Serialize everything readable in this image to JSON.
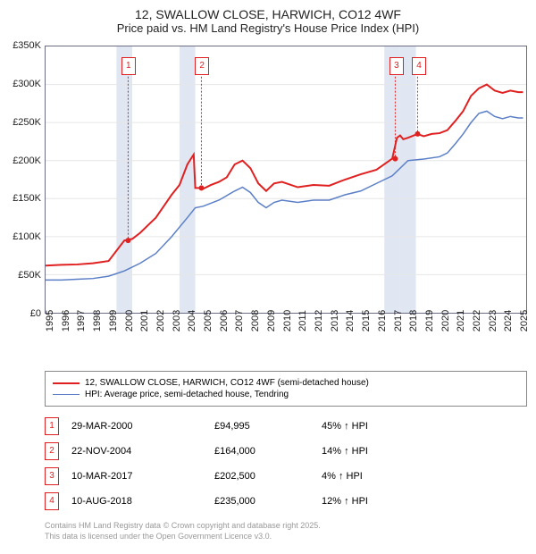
{
  "title": {
    "line1": "12, SWALLOW CLOSE, HARWICH, CO12 4WF",
    "line2": "Price paid vs. HM Land Registry's House Price Index (HPI)"
  },
  "chart": {
    "type": "line",
    "background_color": "#ffffff",
    "border_color": "#6a6c84",
    "grid_color": "#e6e6e6",
    "band_color": "#e0e7f2",
    "x_range": [
      1995,
      2025.5
    ],
    "x_ticks": [
      1995,
      1996,
      1997,
      1998,
      1999,
      2000,
      2001,
      2002,
      2003,
      2004,
      2005,
      2006,
      2007,
      2008,
      2009,
      2010,
      2011,
      2012,
      2013,
      2014,
      2015,
      2016,
      2017,
      2018,
      2019,
      2020,
      2021,
      2022,
      2023,
      2024,
      2025
    ],
    "y_range": [
      0,
      350000
    ],
    "y_ticks": [
      {
        "v": 0,
        "label": "£0"
      },
      {
        "v": 50000,
        "label": "£50K"
      },
      {
        "v": 100000,
        "label": "£100K"
      },
      {
        "v": 150000,
        "label": "£150K"
      },
      {
        "v": 200000,
        "label": "£200K"
      },
      {
        "v": 250000,
        "label": "£250K"
      },
      {
        "v": 300000,
        "label": "£300K"
      },
      {
        "v": 350000,
        "label": "£350K"
      }
    ],
    "x_label_fontsize": 11,
    "y_label_fontsize": 11,
    "series": [
      {
        "name": "12, SWALLOW CLOSE, HARWICH, CO12 4WF (semi-detached house)",
        "color": "#e02020",
        "width": 2,
        "data": [
          [
            1995,
            62000
          ],
          [
            1996,
            63000
          ],
          [
            1997,
            63500
          ],
          [
            1998,
            65000
          ],
          [
            1999,
            68000
          ],
          [
            2000,
            94995
          ],
          [
            2000.5,
            97000
          ],
          [
            2001,
            105000
          ],
          [
            2001.5,
            115000
          ],
          [
            2002,
            125000
          ],
          [
            2002.5,
            140000
          ],
          [
            2003,
            155000
          ],
          [
            2003.5,
            168000
          ],
          [
            2004,
            195000
          ],
          [
            2004.4,
            208000
          ],
          [
            2004.5,
            164000
          ],
          [
            2004.9,
            164000
          ],
          [
            2005,
            163000
          ],
          [
            2005.5,
            168000
          ],
          [
            2006,
            172000
          ],
          [
            2006.5,
            178000
          ],
          [
            2007,
            195000
          ],
          [
            2007.5,
            200000
          ],
          [
            2008,
            190000
          ],
          [
            2008.5,
            170000
          ],
          [
            2009,
            160000
          ],
          [
            2009.5,
            170000
          ],
          [
            2010,
            172000
          ],
          [
            2011,
            165000
          ],
          [
            2012,
            168000
          ],
          [
            2013,
            167000
          ],
          [
            2014,
            175000
          ],
          [
            2015,
            182000
          ],
          [
            2016,
            188000
          ],
          [
            2017,
            202500
          ],
          [
            2017.3,
            230000
          ],
          [
            2017.5,
            233000
          ],
          [
            2017.7,
            228000
          ],
          [
            2018,
            230000
          ],
          [
            2018.6,
            235000
          ],
          [
            2019,
            232000
          ],
          [
            2019.5,
            235000
          ],
          [
            2020,
            236000
          ],
          [
            2020.5,
            240000
          ],
          [
            2021,
            252000
          ],
          [
            2021.5,
            265000
          ],
          [
            2022,
            285000
          ],
          [
            2022.5,
            295000
          ],
          [
            2023,
            300000
          ],
          [
            2023.5,
            292000
          ],
          [
            2024,
            289000
          ],
          [
            2024.5,
            292000
          ],
          [
            2025,
            290000
          ],
          [
            2025.3,
            290000
          ]
        ]
      },
      {
        "name": "HPI: Average price, semi-detached house, Tendring",
        "color": "#5b7fc7",
        "width": 1.5,
        "data": [
          [
            1995,
            43000
          ],
          [
            1996,
            43000
          ],
          [
            1997,
            44000
          ],
          [
            1998,
            45000
          ],
          [
            1999,
            48000
          ],
          [
            2000,
            55000
          ],
          [
            2001,
            65000
          ],
          [
            2002,
            78000
          ],
          [
            2003,
            100000
          ],
          [
            2004,
            125000
          ],
          [
            2004.5,
            138000
          ],
          [
            2005,
            140000
          ],
          [
            2006,
            148000
          ],
          [
            2007,
            160000
          ],
          [
            2007.5,
            165000
          ],
          [
            2008,
            158000
          ],
          [
            2008.5,
            145000
          ],
          [
            2009,
            138000
          ],
          [
            2009.5,
            145000
          ],
          [
            2010,
            148000
          ],
          [
            2011,
            145000
          ],
          [
            2012,
            148000
          ],
          [
            2013,
            148000
          ],
          [
            2014,
            155000
          ],
          [
            2015,
            160000
          ],
          [
            2016,
            170000
          ],
          [
            2017,
            180000
          ],
          [
            2018,
            200000
          ],
          [
            2019,
            202000
          ],
          [
            2020,
            205000
          ],
          [
            2020.5,
            210000
          ],
          [
            2021,
            222000
          ],
          [
            2021.5,
            235000
          ],
          [
            2022,
            250000
          ],
          [
            2022.5,
            262000
          ],
          [
            2023,
            265000
          ],
          [
            2023.5,
            258000
          ],
          [
            2024,
            255000
          ],
          [
            2024.5,
            258000
          ],
          [
            2025,
            256000
          ],
          [
            2025.3,
            256000
          ]
        ]
      }
    ],
    "markers": [
      {
        "n": "1",
        "x": 2000.24,
        "price": 94995,
        "box_top": 12
      },
      {
        "n": "2",
        "x": 2004.89,
        "price": 164000,
        "box_top": 12
      },
      {
        "n": "3",
        "x": 2017.19,
        "price": 202500,
        "box_top": 12
      },
      {
        "n": "4",
        "x": 2018.61,
        "price": 235000,
        "box_top": 12
      }
    ],
    "bands": [
      {
        "from": 1999.5,
        "to": 2000.5
      },
      {
        "from": 2003.5,
        "to": 2004.5
      },
      {
        "from": 2016.5,
        "to": 2017.5
      },
      {
        "from": 2017.5,
        "to": 2018.5
      }
    ]
  },
  "legend": {
    "items": [
      {
        "color": "#e02020",
        "width": 2,
        "label": "12, SWALLOW CLOSE, HARWICH, CO12 4WF (semi-detached house)"
      },
      {
        "color": "#5b7fc7",
        "width": 1,
        "label": "HPI: Average price, semi-detached house, Tendring"
      }
    ]
  },
  "sales": [
    {
      "n": "1",
      "date": "29-MAR-2000",
      "price": "£94,995",
      "delta": "45% ↑ HPI"
    },
    {
      "n": "2",
      "date": "22-NOV-2004",
      "price": "£164,000",
      "delta": "14% ↑ HPI"
    },
    {
      "n": "3",
      "date": "10-MAR-2017",
      "price": "£202,500",
      "delta": "4% ↑ HPI"
    },
    {
      "n": "4",
      "date": "10-AUG-2018",
      "price": "£235,000",
      "delta": "12% ↑ HPI"
    }
  ],
  "footer": {
    "line1": "Contains HM Land Registry data © Crown copyright and database right 2025.",
    "line2": "This data is licensed under the Open Government Licence v3.0."
  }
}
